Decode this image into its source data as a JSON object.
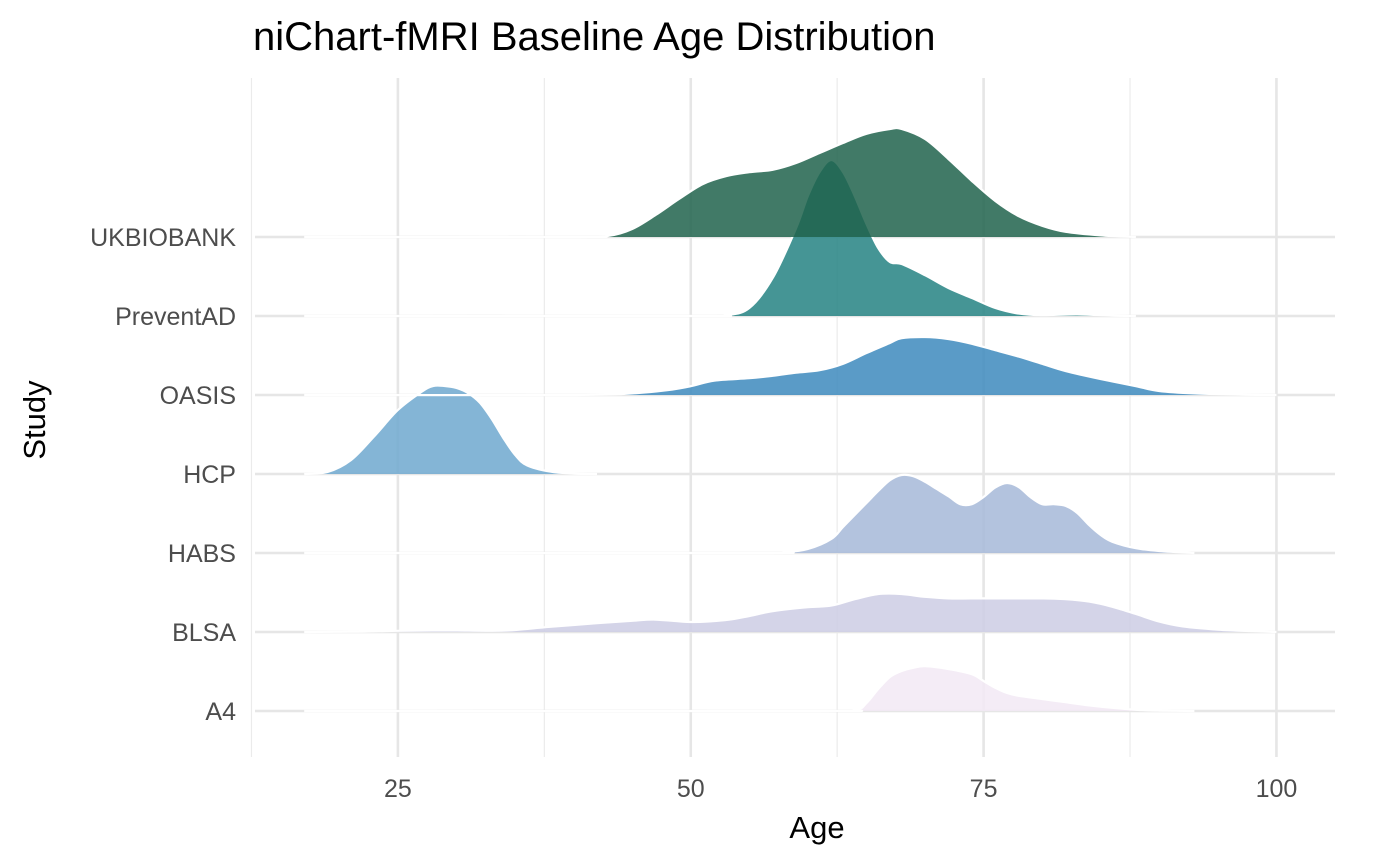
{
  "chart_data": {
    "type": "ridgeline",
    "title": "niChart-fMRI Baseline Age Distribution",
    "xlabel": "Age",
    "ylabel": "Study",
    "xlim": [
      12.8,
      105
    ],
    "xticks": [
      25,
      50,
      75,
      100
    ],
    "grid": true,
    "legend": "none",
    "categories": [
      "UKBIOBANK",
      "PreventAD",
      "OASIS",
      "HCP",
      "HABS",
      "BLSA",
      "A4"
    ],
    "series": [
      {
        "name": "A4",
        "color": "#f2e9f4",
        "points": [
          [
            17,
            0
          ],
          [
            60,
            0
          ],
          [
            64,
            0.03
          ],
          [
            65,
            0.2
          ],
          [
            66,
            0.55
          ],
          [
            67,
            0.85
          ],
          [
            68,
            1.0
          ],
          [
            69,
            1.08
          ],
          [
            70,
            1.12
          ],
          [
            72,
            1.05
          ],
          [
            74,
            0.92
          ],
          [
            75,
            0.75
          ],
          [
            76,
            0.58
          ],
          [
            77,
            0.45
          ],
          [
            78,
            0.38
          ],
          [
            80,
            0.3
          ],
          [
            82,
            0.22
          ],
          [
            84,
            0.14
          ],
          [
            86,
            0.08
          ],
          [
            88,
            0.03
          ],
          [
            90,
            0.01
          ],
          [
            93,
            0
          ]
        ]
      },
      {
        "name": "BLSA",
        "color": "#cdcde4",
        "points": [
          [
            17,
            0
          ],
          [
            22,
            0.01
          ],
          [
            25,
            0.03
          ],
          [
            28,
            0.04
          ],
          [
            30,
            0.04
          ],
          [
            33,
            0.03
          ],
          [
            35,
            0.05
          ],
          [
            38,
            0.13
          ],
          [
            42,
            0.22
          ],
          [
            45,
            0.28
          ],
          [
            47,
            0.31
          ],
          [
            50,
            0.25
          ],
          [
            53,
            0.3
          ],
          [
            55,
            0.4
          ],
          [
            57,
            0.52
          ],
          [
            60,
            0.62
          ],
          [
            62,
            0.66
          ],
          [
            64,
            0.82
          ],
          [
            66,
            0.95
          ],
          [
            68,
            0.95
          ],
          [
            70,
            0.88
          ],
          [
            72,
            0.84
          ],
          [
            74,
            0.84
          ],
          [
            76,
            0.84
          ],
          [
            78,
            0.84
          ],
          [
            80,
            0.84
          ],
          [
            82,
            0.82
          ],
          [
            84,
            0.76
          ],
          [
            86,
            0.63
          ],
          [
            88,
            0.45
          ],
          [
            90,
            0.26
          ],
          [
            92,
            0.14
          ],
          [
            95,
            0.06
          ],
          [
            98,
            0.02
          ],
          [
            100,
            0
          ]
        ]
      },
      {
        "name": "HABS",
        "color": "#a6b9d8",
        "points": [
          [
            17,
            0
          ],
          [
            55,
            0
          ],
          [
            58,
            0.02
          ],
          [
            60,
            0.1
          ],
          [
            62,
            0.35
          ],
          [
            63,
            0.65
          ],
          [
            64,
            0.95
          ],
          [
            65,
            1.25
          ],
          [
            66,
            1.55
          ],
          [
            67,
            1.82
          ],
          [
            68,
            1.95
          ],
          [
            69,
            1.92
          ],
          [
            70,
            1.78
          ],
          [
            71,
            1.6
          ],
          [
            72,
            1.42
          ],
          [
            73,
            1.22
          ],
          [
            74,
            1.22
          ],
          [
            75,
            1.4
          ],
          [
            76,
            1.64
          ],
          [
            77,
            1.75
          ],
          [
            78,
            1.65
          ],
          [
            79,
            1.4
          ],
          [
            80,
            1.22
          ],
          [
            81,
            1.22
          ],
          [
            82,
            1.18
          ],
          [
            83,
            1.0
          ],
          [
            84,
            0.7
          ],
          [
            85,
            0.45
          ],
          [
            86,
            0.28
          ],
          [
            88,
            0.12
          ],
          [
            90,
            0.05
          ],
          [
            93,
            0
          ]
        ]
      },
      {
        "name": "HCP",
        "color": "#6fa8cf",
        "points": [
          [
            17,
            0
          ],
          [
            19,
            0.05
          ],
          [
            21,
            0.35
          ],
          [
            23,
            0.95
          ],
          [
            25,
            1.6
          ],
          [
            27,
            2.05
          ],
          [
            28,
            2.2
          ],
          [
            29,
            2.2
          ],
          [
            30,
            2.15
          ],
          [
            31,
            2.02
          ],
          [
            32,
            1.78
          ],
          [
            33,
            1.38
          ],
          [
            34,
            0.9
          ],
          [
            35,
            0.48
          ],
          [
            36,
            0.22
          ],
          [
            38,
            0.06
          ],
          [
            40,
            0.01
          ],
          [
            42,
            0
          ]
        ]
      },
      {
        "name": "OASIS",
        "color": "#3d89bd",
        "points": [
          [
            17,
            0
          ],
          [
            40,
            0
          ],
          [
            45,
            0.04
          ],
          [
            48,
            0.12
          ],
          [
            50,
            0.22
          ],
          [
            52,
            0.36
          ],
          [
            55,
            0.42
          ],
          [
            57,
            0.48
          ],
          [
            59,
            0.56
          ],
          [
            61,
            0.62
          ],
          [
            63,
            0.78
          ],
          [
            65,
            1.05
          ],
          [
            67,
            1.3
          ],
          [
            68,
            1.42
          ],
          [
            70,
            1.45
          ],
          [
            72,
            1.4
          ],
          [
            74,
            1.28
          ],
          [
            76,
            1.12
          ],
          [
            78,
            0.96
          ],
          [
            80,
            0.78
          ],
          [
            82,
            0.6
          ],
          [
            85,
            0.4
          ],
          [
            88,
            0.22
          ],
          [
            90,
            0.1
          ],
          [
            93,
            0.04
          ],
          [
            97,
            0.01
          ],
          [
            100,
            0
          ]
        ]
      },
      {
        "name": "PreventAD",
        "color": "#258383",
        "points": [
          [
            17,
            0
          ],
          [
            50,
            0
          ],
          [
            53,
            0.02
          ],
          [
            55,
            0.2
          ],
          [
            57,
            0.95
          ],
          [
            59,
            2.2
          ],
          [
            60,
            3.0
          ],
          [
            61,
            3.6
          ],
          [
            62,
            3.9
          ],
          [
            63,
            3.6
          ],
          [
            64,
            3.0
          ],
          [
            65,
            2.3
          ],
          [
            66,
            1.7
          ],
          [
            67,
            1.35
          ],
          [
            68,
            1.3
          ],
          [
            70,
            1.02
          ],
          [
            72,
            0.7
          ],
          [
            74,
            0.45
          ],
          [
            76,
            0.2
          ],
          [
            78,
            0.06
          ],
          [
            80,
            0.02
          ],
          [
            83,
            0.04
          ],
          [
            86,
            0.01
          ],
          [
            88,
            0
          ]
        ]
      },
      {
        "name": "UKBIOBANK",
        "color": "#20634c",
        "points": [
          [
            17,
            0
          ],
          [
            40,
            0
          ],
          [
            43,
            0.03
          ],
          [
            45,
            0.2
          ],
          [
            47,
            0.55
          ],
          [
            49,
            0.95
          ],
          [
            51,
            1.32
          ],
          [
            53,
            1.52
          ],
          [
            55,
            1.62
          ],
          [
            57,
            1.68
          ],
          [
            59,
            1.85
          ],
          [
            61,
            2.1
          ],
          [
            63,
            2.35
          ],
          [
            65,
            2.58
          ],
          [
            67,
            2.7
          ],
          [
            68,
            2.7
          ],
          [
            70,
            2.45
          ],
          [
            72,
            1.95
          ],
          [
            74,
            1.4
          ],
          [
            76,
            0.9
          ],
          [
            78,
            0.52
          ],
          [
            80,
            0.28
          ],
          [
            82,
            0.13
          ],
          [
            85,
            0.04
          ],
          [
            88,
            0
          ]
        ]
      }
    ]
  }
}
